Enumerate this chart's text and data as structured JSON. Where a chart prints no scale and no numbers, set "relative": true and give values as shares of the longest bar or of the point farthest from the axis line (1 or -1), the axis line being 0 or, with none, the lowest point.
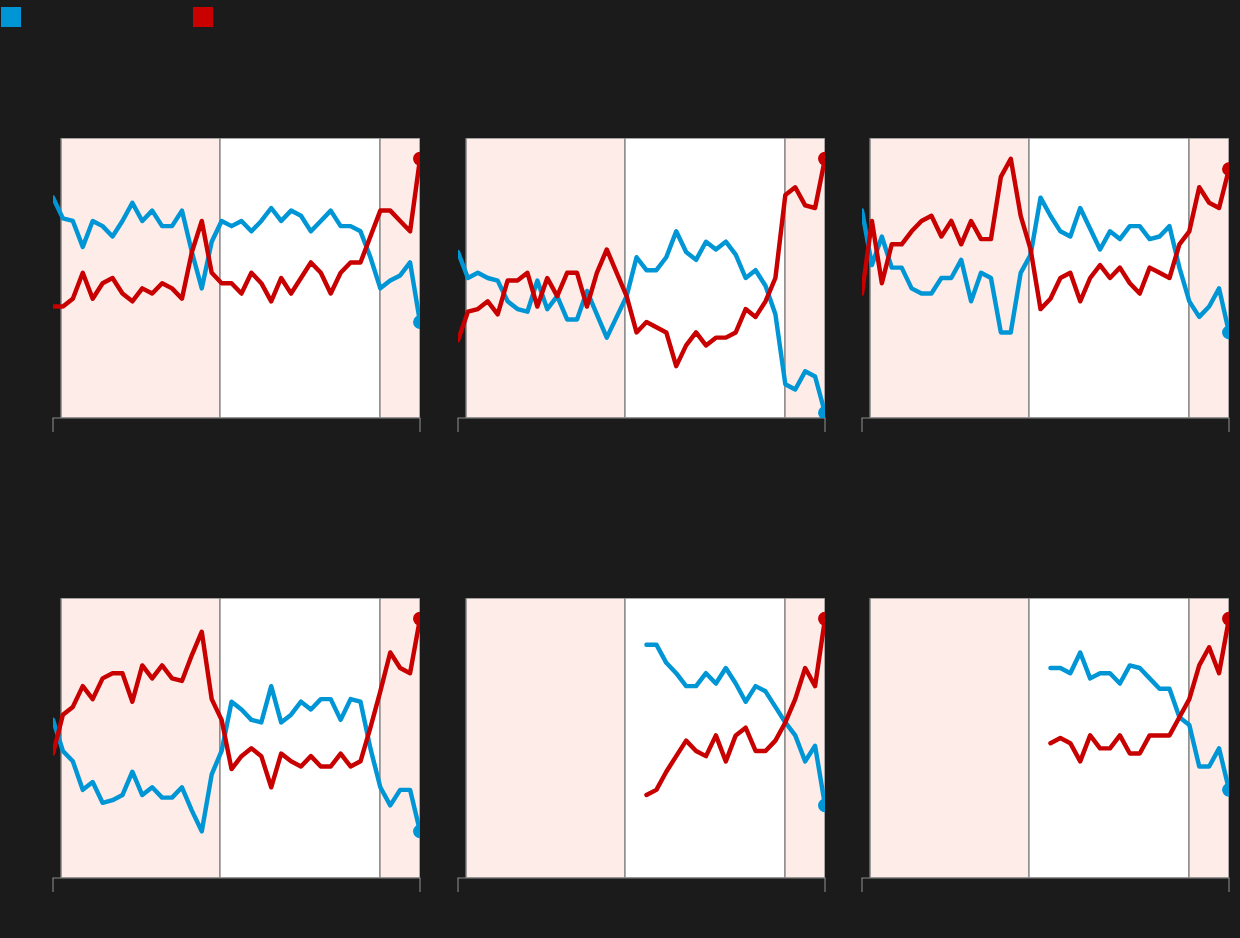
{
  "chart_data": [
    {
      "type": "line",
      "relative": true,
      "categories": [
        null,
        null,
        null,
        null,
        null,
        null,
        null,
        null,
        null,
        null,
        null,
        null,
        null,
        null,
        null,
        null,
        null,
        null,
        null,
        null,
        null,
        null,
        null,
        null,
        null,
        null,
        null,
        null,
        null,
        null,
        null,
        null,
        null,
        null,
        null,
        null,
        null,
        null
      ],
      "series": [
        {
          "color": "#0096d6",
          "values": [
            0.85,
            0.77,
            0.76,
            0.66,
            0.76,
            0.74,
            0.7,
            0.76,
            0.83,
            0.76,
            0.8,
            0.74,
            0.74,
            0.8,
            0.64,
            0.5,
            0.68,
            0.76,
            0.74,
            0.76,
            0.72,
            0.76,
            0.81,
            0.76,
            0.8,
            0.78,
            0.72,
            0.76,
            0.8,
            0.74,
            0.74,
            0.72,
            0.62,
            0.5,
            0.53,
            0.55,
            0.6,
            0.37
          ]
        },
        {
          "color": "#c80000",
          "values": [
            0.43,
            0.43,
            0.46,
            0.56,
            0.46,
            0.52,
            0.54,
            0.48,
            0.45,
            0.5,
            0.48,
            0.52,
            0.5,
            0.46,
            0.64,
            0.76,
            0.56,
            0.52,
            0.52,
            0.48,
            0.56,
            0.52,
            0.45,
            0.54,
            0.48,
            0.54,
            0.6,
            0.56,
            0.48,
            0.56,
            0.6,
            0.6,
            0.7,
            0.8,
            0.8,
            0.76,
            0.72,
            1
          ]
        }
      ]
    },
    {
      "type": "line",
      "relative": true,
      "categories": [
        null,
        null,
        null,
        null,
        null,
        null,
        null,
        null,
        null,
        null,
        null,
        null,
        null,
        null,
        null,
        null,
        null,
        null,
        null,
        null,
        null,
        null,
        null,
        null,
        null,
        null,
        null,
        null,
        null,
        null,
        null,
        null,
        null,
        null,
        null,
        null,
        null,
        null
      ],
      "series": [
        {
          "color": "#0096d6",
          "values": [
            0.64,
            0.54,
            0.56,
            0.54,
            0.53,
            0.45,
            0.42,
            0.41,
            0.53,
            0.42,
            0.47,
            0.38,
            0.38,
            0.49,
            0.4,
            0.31,
            0.39,
            0.47,
            0.62,
            0.57,
            0.57,
            0.62,
            0.72,
            0.64,
            0.61,
            0.68,
            0.65,
            0.68,
            0.63,
            0.54,
            0.57,
            0.51,
            0.4,
            0.13,
            0.11,
            0.18,
            0.16,
            0.02
          ]
        },
        {
          "color": "#c80000",
          "values": [
            0.3,
            0.41,
            0.42,
            0.45,
            0.4,
            0.53,
            0.53,
            0.56,
            0.43,
            0.54,
            0.47,
            0.56,
            0.56,
            0.43,
            0.56,
            0.65,
            0.56,
            0.47,
            0.33,
            0.37,
            0.35,
            0.33,
            0.2,
            0.28,
            0.33,
            0.28,
            0.31,
            0.31,
            0.33,
            0.42,
            0.39,
            0.45,
            0.54,
            0.86,
            0.89,
            0.82,
            0.81,
            1
          ]
        }
      ]
    },
    {
      "type": "line",
      "relative": true,
      "categories": [
        null,
        null,
        null,
        null,
        null,
        null,
        null,
        null,
        null,
        null,
        null,
        null,
        null,
        null,
        null,
        null,
        null,
        null,
        null,
        null,
        null,
        null,
        null,
        null,
        null,
        null,
        null,
        null,
        null,
        null,
        null,
        null,
        null,
        null,
        null,
        null,
        null,
        null
      ],
      "series": [
        {
          "color": "#0096d6",
          "values": [
            0.8,
            0.59,
            0.7,
            0.58,
            0.58,
            0.5,
            0.48,
            0.48,
            0.54,
            0.54,
            0.61,
            0.45,
            0.56,
            0.54,
            0.33,
            0.33,
            0.56,
            0.63,
            0.85,
            0.78,
            0.72,
            0.7,
            0.81,
            0.73,
            0.65,
            0.72,
            0.69,
            0.74,
            0.74,
            0.69,
            0.7,
            0.74,
            0.58,
            0.45,
            0.39,
            0.43,
            0.5,
            0.33
          ]
        },
        {
          "color": "#c80000",
          "values": [
            0.48,
            0.76,
            0.52,
            0.67,
            0.67,
            0.72,
            0.76,
            0.78,
            0.7,
            0.76,
            0.67,
            0.76,
            0.69,
            0.69,
            0.93,
            1,
            0.78,
            0.65,
            0.42,
            0.46,
            0.54,
            0.56,
            0.45,
            0.54,
            0.59,
            0.54,
            0.58,
            0.52,
            0.48,
            0.58,
            0.56,
            0.54,
            0.67,
            0.72,
            0.89,
            0.83,
            0.81,
            0.96
          ]
        }
      ]
    },
    {
      "type": "line",
      "relative": true,
      "categories": [
        null,
        null,
        null,
        null,
        null,
        null,
        null,
        null,
        null,
        null,
        null,
        null,
        null,
        null,
        null,
        null,
        null,
        null,
        null,
        null,
        null,
        null,
        null,
        null,
        null,
        null,
        null,
        null,
        null,
        null,
        null,
        null,
        null,
        null,
        null,
        null,
        null,
        null
      ],
      "series": [
        {
          "color": "#0096d6",
          "values": [
            0.61,
            0.49,
            0.45,
            0.34,
            0.37,
            0.29,
            0.3,
            0.32,
            0.41,
            0.32,
            0.35,
            0.31,
            0.31,
            0.35,
            0.26,
            0.18,
            0.4,
            0.49,
            0.68,
            0.65,
            0.61,
            0.6,
            0.74,
            0.6,
            0.63,
            0.68,
            0.65,
            0.69,
            0.69,
            0.61,
            0.69,
            0.68,
            0.5,
            0.35,
            0.28,
            0.34,
            0.34,
            0.18
          ]
        },
        {
          "color": "#c80000",
          "values": [
            0.48,
            0.63,
            0.66,
            0.74,
            0.69,
            0.77,
            0.79,
            0.79,
            0.68,
            0.82,
            0.77,
            0.82,
            0.77,
            0.76,
            0.86,
            0.95,
            0.69,
            0.61,
            0.42,
            0.47,
            0.5,
            0.47,
            0.35,
            0.48,
            0.45,
            0.43,
            0.47,
            0.43,
            0.43,
            0.48,
            0.43,
            0.45,
            0.58,
            0.72,
            0.87,
            0.81,
            0.79,
            1
          ]
        }
      ]
    },
    {
      "type": "line",
      "relative": true,
      "categories": [
        null,
        null,
        null,
        null,
        null,
        null,
        null,
        null,
        null,
        null,
        null,
        null,
        null,
        null,
        null,
        null,
        null,
        null,
        null,
        null,
        null,
        null,
        null,
        null,
        null,
        null,
        null,
        null,
        null,
        null,
        null,
        null,
        null,
        null,
        null,
        null,
        null,
        null
      ],
      "series": [
        {
          "color": "#0096d6",
          "values": [
            null,
            null,
            null,
            null,
            null,
            null,
            null,
            null,
            null,
            null,
            null,
            null,
            null,
            null,
            null,
            null,
            null,
            null,
            null,
            0.9,
            0.9,
            0.83,
            0.79,
            0.74,
            0.74,
            0.79,
            0.75,
            0.81,
            0.75,
            0.68,
            0.74,
            0.72,
            0.66,
            0.6,
            0.55,
            0.45,
            0.51,
            0.28
          ]
        },
        {
          "color": "#c80000",
          "values": [
            null,
            null,
            null,
            null,
            null,
            null,
            null,
            null,
            null,
            null,
            null,
            null,
            null,
            null,
            null,
            null,
            null,
            null,
            null,
            0.32,
            0.34,
            0.41,
            0.47,
            0.53,
            0.49,
            0.47,
            0.55,
            0.45,
            0.55,
            0.58,
            0.49,
            0.49,
            0.53,
            0.6,
            0.69,
            0.81,
            0.74,
            1
          ]
        }
      ]
    },
    {
      "type": "line",
      "relative": true,
      "categories": [
        null,
        null,
        null,
        null,
        null,
        null,
        null,
        null,
        null,
        null,
        null,
        null,
        null,
        null,
        null,
        null,
        null,
        null,
        null,
        null,
        null,
        null,
        null,
        null,
        null,
        null,
        null,
        null,
        null,
        null,
        null,
        null,
        null,
        null,
        null,
        null,
        null,
        null
      ],
      "series": [
        {
          "color": "#0096d6",
          "values": [
            null,
            null,
            null,
            null,
            null,
            null,
            null,
            null,
            null,
            null,
            null,
            null,
            null,
            null,
            null,
            null,
            null,
            null,
            null,
            0.81,
            0.81,
            0.79,
            0.87,
            0.77,
            0.79,
            0.79,
            0.75,
            0.82,
            0.81,
            0.77,
            0.73,
            0.73,
            0.62,
            0.59,
            0.43,
            0.43,
            0.5,
            0.34
          ]
        },
        {
          "color": "#c80000",
          "values": [
            null,
            null,
            null,
            null,
            null,
            null,
            null,
            null,
            null,
            null,
            null,
            null,
            null,
            null,
            null,
            null,
            null,
            null,
            null,
            0.52,
            0.54,
            0.52,
            0.45,
            0.55,
            0.5,
            0.5,
            0.55,
            0.48,
            0.48,
            0.55,
            0.55,
            0.55,
            0.62,
            0.69,
            0.82,
            0.89,
            0.79,
            1
          ]
        }
      ]
    }
  ]
}
